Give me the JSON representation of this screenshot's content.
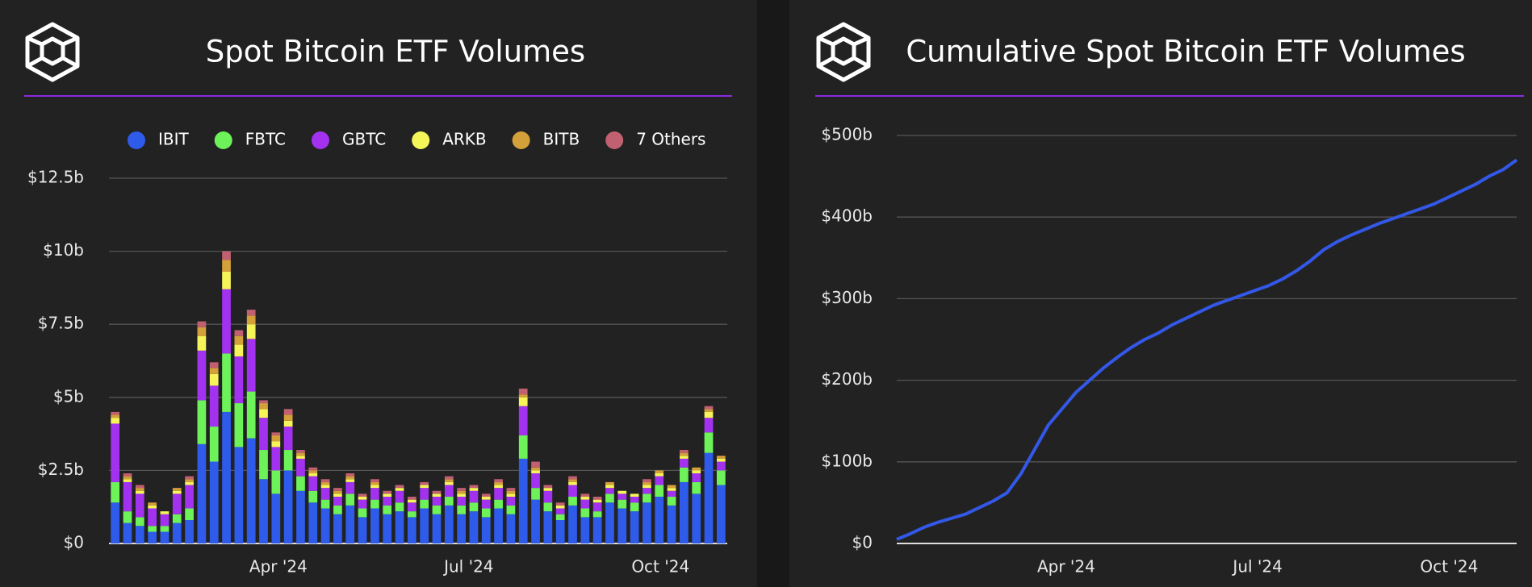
{
  "chart_data": [
    {
      "type": "bar",
      "stacked": true,
      "title": "Spot Bitcoin ETF Volumes",
      "legend": "top",
      "grid": true,
      "categories": [
        null,
        null,
        null,
        null,
        null,
        null,
        null,
        null,
        null,
        null,
        null,
        null,
        null,
        null,
        null,
        null,
        null,
        null,
        null,
        null,
        null,
        null,
        null,
        null,
        null,
        null,
        null,
        null,
        null,
        null,
        null,
        null,
        null,
        null,
        null,
        null,
        null,
        null,
        null,
        null,
        null,
        null,
        null,
        null,
        null,
        null,
        null,
        null,
        null,
        null
      ],
      "xlim": [
        0,
        50
      ],
      "xticks": [
        {
          "value": 13.7,
          "label": "Apr '24"
        },
        {
          "value": 29.1,
          "label": "Jul '24"
        },
        {
          "value": 44.6,
          "label": "Oct '24"
        }
      ],
      "ylim": [
        0,
        12.5
      ],
      "yticks": [
        {
          "value": 0,
          "label": "$0"
        },
        {
          "value": 2.5,
          "label": "$2.5b"
        },
        {
          "value": 5,
          "label": "$5b"
        },
        {
          "value": 7.5,
          "label": "$7.5b"
        },
        {
          "value": 10,
          "label": "$10b"
        },
        {
          "value": 12.5,
          "label": "$12.5b"
        }
      ],
      "series": [
        {
          "name": "IBIT",
          "color": "#2f5bea",
          "values": [
            1.4,
            0.7,
            0.6,
            0.4,
            0.4,
            0.7,
            0.8,
            3.4,
            2.8,
            4.5,
            3.3,
            3.6,
            2.2,
            1.7,
            2.5,
            1.8,
            1.4,
            1.2,
            1.0,
            1.3,
            0.9,
            1.2,
            1.0,
            1.1,
            0.9,
            1.2,
            1.0,
            1.3,
            1.0,
            1.1,
            0.9,
            1.2,
            1.0,
            2.9,
            1.5,
            1.1,
            0.8,
            1.3,
            0.9,
            0.9,
            1.4,
            1.2,
            1.1,
            1.4,
            1.6,
            1.3,
            2.1,
            1.7,
            3.1,
            2.0
          ]
        },
        {
          "name": "FBTC",
          "color": "#6df25a",
          "values": [
            0.7,
            0.4,
            0.3,
            0.2,
            0.2,
            0.3,
            0.4,
            1.5,
            1.2,
            2.0,
            1.5,
            1.6,
            1.0,
            0.8,
            0.7,
            0.5,
            0.4,
            0.3,
            0.3,
            0.4,
            0.3,
            0.3,
            0.3,
            0.3,
            0.2,
            0.3,
            0.3,
            0.3,
            0.3,
            0.3,
            0.3,
            0.3,
            0.3,
            0.8,
            0.4,
            0.3,
            0.2,
            0.3,
            0.3,
            0.2,
            0.3,
            0.3,
            0.3,
            0.3,
            0.4,
            0.3,
            0.5,
            0.4,
            0.7,
            0.5
          ]
        },
        {
          "name": "GBTC",
          "color": "#a232f0",
          "values": [
            2.0,
            1.0,
            0.8,
            0.6,
            0.4,
            0.7,
            0.8,
            1.7,
            1.4,
            2.2,
            1.6,
            1.8,
            1.1,
            0.8,
            0.8,
            0.6,
            0.5,
            0.4,
            0.3,
            0.4,
            0.3,
            0.4,
            0.3,
            0.4,
            0.3,
            0.4,
            0.3,
            0.4,
            0.3,
            0.4,
            0.3,
            0.4,
            0.3,
            1.0,
            0.5,
            0.4,
            0.2,
            0.4,
            0.3,
            0.3,
            0.2,
            0.2,
            0.2,
            0.2,
            0.3,
            0.2,
            0.3,
            0.3,
            0.5,
            0.3
          ]
        },
        {
          "name": "ARKB",
          "color": "#f5f55a",
          "values": [
            0.2,
            0.1,
            0.1,
            0.1,
            0.1,
            0.1,
            0.1,
            0.5,
            0.4,
            0.6,
            0.4,
            0.5,
            0.3,
            0.2,
            0.2,
            0.1,
            0.1,
            0.1,
            0.1,
            0.1,
            0.1,
            0.1,
            0.1,
            0.1,
            0.1,
            0.1,
            0.1,
            0.1,
            0.1,
            0.1,
            0.1,
            0.1,
            0.1,
            0.3,
            0.1,
            0.1,
            0.1,
            0.1,
            0.1,
            0.1,
            0.1,
            0.1,
            0.1,
            0.1,
            0.1,
            0.1,
            0.1,
            0.1,
            0.2,
            0.1
          ]
        },
        {
          "name": "BITB",
          "color": "#d4a03a",
          "values": [
            0.1,
            0.1,
            0.1,
            0.1,
            0,
            0.1,
            0.1,
            0.3,
            0.2,
            0.4,
            0.3,
            0.3,
            0.2,
            0.2,
            0.2,
            0.1,
            0.1,
            0.1,
            0.1,
            0.1,
            0,
            0.1,
            0,
            0,
            0,
            0,
            0,
            0.1,
            0.1,
            0,
            0,
            0.1,
            0.1,
            0.1,
            0.1,
            0,
            0,
            0.1,
            0,
            0,
            0.1,
            0,
            0,
            0.1,
            0.1,
            0.1,
            0.1,
            0.1,
            0.1,
            0.1
          ]
        },
        {
          "name": "7 Others",
          "color": "#c06070",
          "values": [
            0.1,
            0.1,
            0.1,
            0,
            0,
            0,
            0.1,
            0.2,
            0.2,
            0.3,
            0.2,
            0.2,
            0.1,
            0.1,
            0.2,
            0.1,
            0.1,
            0.1,
            0.1,
            0.1,
            0.1,
            0.1,
            0.1,
            0.1,
            0.1,
            0.1,
            0.1,
            0.1,
            0.1,
            0.1,
            0.1,
            0.1,
            0.1,
            0.2,
            0.2,
            0.1,
            0.1,
            0.1,
            0.1,
            0.1,
            0,
            0,
            0,
            0.1,
            0,
            0,
            0.1,
            0,
            0.1,
            0
          ]
        }
      ]
    },
    {
      "type": "line",
      "title": "Cumulative Spot Bitcoin ETF Volumes",
      "grid": true,
      "categories": [
        null,
        null,
        null,
        null,
        null,
        null,
        null,
        null,
        null,
        null,
        null,
        null,
        null,
        null,
        null,
        null,
        null,
        null,
        null,
        null,
        null,
        null,
        null,
        null,
        null,
        null,
        null,
        null,
        null,
        null,
        null,
        null,
        null,
        null,
        null,
        null,
        null,
        null,
        null,
        null,
        null,
        null,
        null,
        null,
        null,
        null
      ],
      "xlim": [
        0,
        45
      ],
      "xticks": [
        {
          "value": 12.3,
          "label": "Apr '24"
        },
        {
          "value": 26.2,
          "label": "Jul '24"
        },
        {
          "value": 40.1,
          "label": "Oct '24"
        }
      ],
      "ylim": [
        0,
        500
      ],
      "yticks": [
        {
          "value": 0,
          "label": "$0"
        },
        {
          "value": 100,
          "label": "$100b"
        },
        {
          "value": 200,
          "label": "$200b"
        },
        {
          "value": 300,
          "label": "$300b"
        },
        {
          "value": 400,
          "label": "$400b"
        },
        {
          "value": 500,
          "label": "$500b"
        }
      ],
      "color": "#3358e8",
      "values": [
        5,
        12,
        20,
        26,
        31,
        36,
        44,
        52,
        62,
        85,
        115,
        145,
        165,
        185,
        200,
        215,
        228,
        240,
        250,
        258,
        268,
        276,
        284,
        292,
        298,
        304,
        310,
        316,
        324,
        334,
        346,
        360,
        370,
        378,
        385,
        392,
        398,
        404,
        410,
        416,
        424,
        432,
        440,
        450,
        458,
        470
      ]
    }
  ]
}
